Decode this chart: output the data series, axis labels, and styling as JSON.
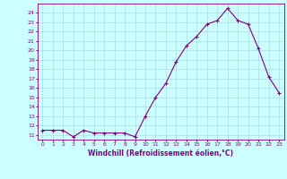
{
  "x": [
    0,
    1,
    2,
    3,
    4,
    5,
    6,
    7,
    8,
    9,
    10,
    11,
    12,
    13,
    14,
    15,
    16,
    17,
    18,
    19,
    20,
    21,
    22,
    23
  ],
  "y": [
    11.5,
    11.5,
    11.5,
    10.8,
    11.5,
    11.2,
    11.2,
    11.2,
    11.2,
    10.8,
    13.0,
    15.0,
    16.5,
    18.8,
    20.5,
    21.5,
    22.8,
    23.2,
    24.5,
    23.2,
    22.8,
    20.2,
    17.2,
    15.5
  ],
  "line_color": "#800080",
  "marker": "+",
  "bg_color": "#ccffff",
  "grid_color": "#aadddd",
  "xlabel": "Windchill (Refroidissement éolien,°C)",
  "xlim": [
    -0.5,
    23.5
  ],
  "ylim": [
    10.5,
    25.0
  ],
  "yticks": [
    11,
    12,
    13,
    14,
    15,
    16,
    17,
    18,
    19,
    20,
    21,
    22,
    23,
    24
  ],
  "xticks": [
    0,
    1,
    2,
    3,
    4,
    5,
    6,
    7,
    8,
    9,
    10,
    11,
    12,
    13,
    14,
    15,
    16,
    17,
    18,
    19,
    20,
    21,
    22,
    23
  ],
  "tick_fontsize": 4.5,
  "xlabel_fontsize": 5.5
}
